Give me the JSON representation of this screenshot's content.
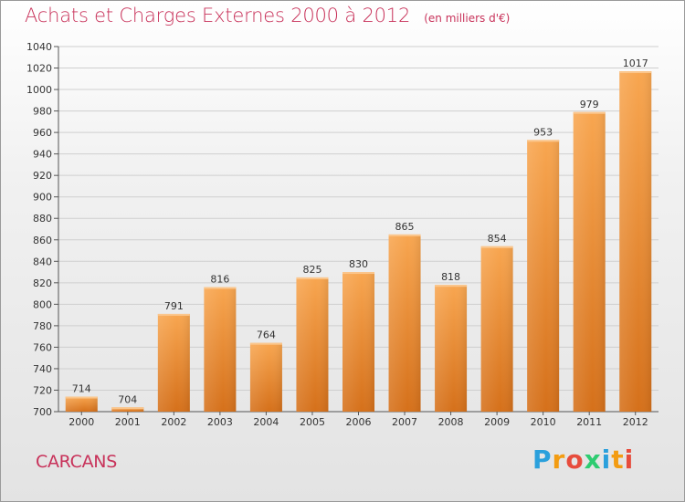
{
  "header": {
    "title": "Achats et Charges Externes 2000 à 2012",
    "unit": "(en milliers d'€)"
  },
  "commune": "CARCANS",
  "logo": {
    "text": "Proxiti",
    "letters": [
      {
        "char": "P",
        "color": "#2aa0dc"
      },
      {
        "char": "r",
        "color": "#f39c12"
      },
      {
        "char": "o",
        "color": "#e74c3c"
      },
      {
        "char": "x",
        "color": "#2ecc71"
      },
      {
        "char": "i",
        "color": "#2aa0dc"
      },
      {
        "char": "t",
        "color": "#f39c12"
      },
      {
        "char": "i",
        "color": "#e74c3c"
      }
    ]
  },
  "colors": {
    "title": "#c8325a",
    "bar_light": "#f7a24c",
    "bar_dark": "#d66f15",
    "grid": "#cccccc"
  },
  "chart_data": {
    "type": "bar",
    "title": "Achats et Charges Externes 2000 à 2012",
    "subtitle": "(en milliers d'€)",
    "categories": [
      "2000",
      "2001",
      "2002",
      "2003",
      "2004",
      "2005",
      "2006",
      "2007",
      "2008",
      "2009",
      "2010",
      "2011",
      "2012"
    ],
    "values": [
      714,
      704,
      791,
      816,
      764,
      825,
      830,
      865,
      818,
      854,
      953,
      979,
      1017
    ],
    "ylim": [
      700,
      1040
    ],
    "yticks": [
      700,
      720,
      740,
      760,
      780,
      800,
      820,
      840,
      860,
      880,
      900,
      920,
      940,
      960,
      980,
      1000,
      1020,
      1040
    ],
    "grid": true,
    "xlabel": "",
    "ylabel": ""
  }
}
